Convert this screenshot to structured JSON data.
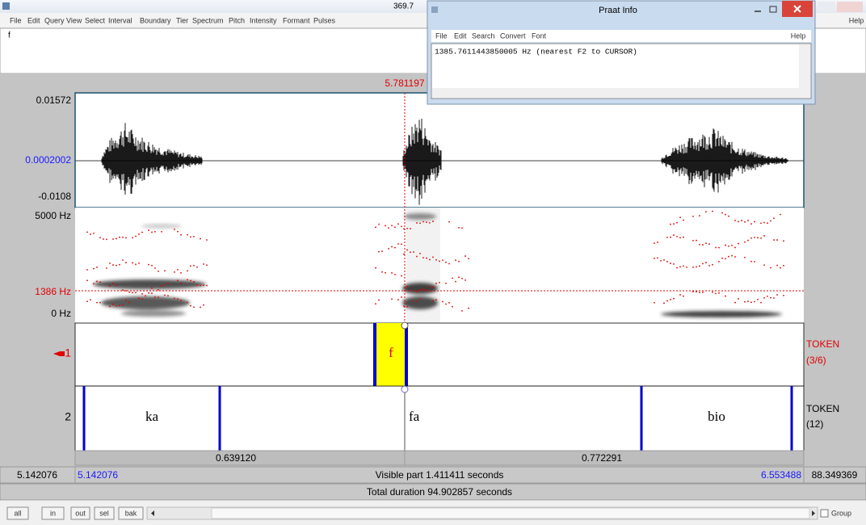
{
  "window": {
    "title": "369.7",
    "menu": [
      "File",
      "Edit",
      "Query",
      "View",
      "Select",
      "Interval",
      "Boundary",
      "Tier",
      "Spectrum",
      "Pitch",
      "Intensity",
      "Formant",
      "Pulses"
    ],
    "help": "Help",
    "text_field": "f"
  },
  "cursor_time": "5.781197",
  "waveform": {
    "max": "0.01572",
    "cursor_value": "0.0002002",
    "min": "-0.0108"
  },
  "spectrogram": {
    "top": "5000 Hz",
    "cursor": "1386 Hz",
    "bottom": "0 Hz"
  },
  "tiers": [
    {
      "label": "1",
      "name": "TOKEN",
      "count": "(3/6)",
      "intervals": [
        "f"
      ]
    },
    {
      "label": "2",
      "name": "TOKEN",
      "count": "(12)",
      "intervals": [
        "ka",
        "fa",
        "bio"
      ]
    }
  ],
  "durations": [
    "0.639120",
    "0.772291"
  ],
  "time_bar": {
    "window_start": "5.142076",
    "visible_start": "5.142076",
    "visible_part": "Visible part 1.411411 seconds",
    "visible_end": "6.553488",
    "remaining": "88.349369"
  },
  "total_duration": "Total duration 94.902857 seconds",
  "buttons": [
    "all",
    "in",
    "out",
    "sel",
    "bak"
  ],
  "group": "Group",
  "info_window": {
    "title": "Praat Info",
    "menu": [
      "File",
      "Edit",
      "Search",
      "Convert",
      "Font"
    ],
    "help": "Help",
    "text": "1385.7611443850005 Hz (nearest F2 to CURSOR)"
  }
}
